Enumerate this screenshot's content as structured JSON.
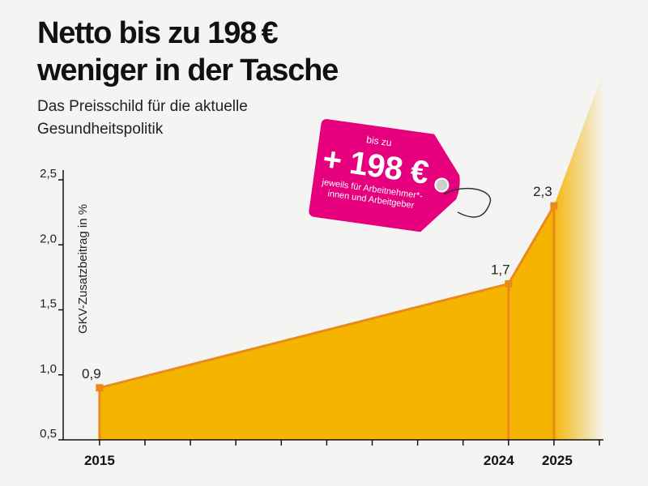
{
  "header": {
    "title_line1": "Netto bis zu 198 €",
    "title_line2": "weniger in der Tasche",
    "subtitle_line1": "Das Preisschild für die aktuelle",
    "subtitle_line2": "Gesundheitspolitik"
  },
  "price_tag": {
    "prefix": "bis zu",
    "amount": "+ 198 €",
    "note_line1": "jeweils für Arbeitnehmer*-",
    "note_line2": "innen und Arbeitgeber"
  },
  "colors": {
    "area": "#f5b400",
    "line": "#e98a1a",
    "tag": "#e6007e",
    "axis": "#111111"
  },
  "chart_data": {
    "type": "area",
    "title": "Netto bis zu 198 € weniger in der Tasche",
    "ylabel": "GKV-Zusatzbeitrag in %",
    "xlabel": "",
    "x": [
      2015,
      2024,
      2025
    ],
    "values": [
      0.9,
      1.7,
      2.3
    ],
    "value_labels": [
      "0,9",
      "1,7",
      "2,3"
    ],
    "x_tick_labels": [
      "2015",
      "2024",
      "2025"
    ],
    "xlim": [
      2015,
      2026
    ],
    "ylim": [
      0.5,
      2.5
    ],
    "y_ticks": [
      0.5,
      1.0,
      1.5,
      2.0,
      2.5
    ],
    "y_tick_labels": [
      "0,5",
      "1,0",
      "1,5",
      "2,0",
      "2,5"
    ],
    "trend_continues_after": 2025
  }
}
